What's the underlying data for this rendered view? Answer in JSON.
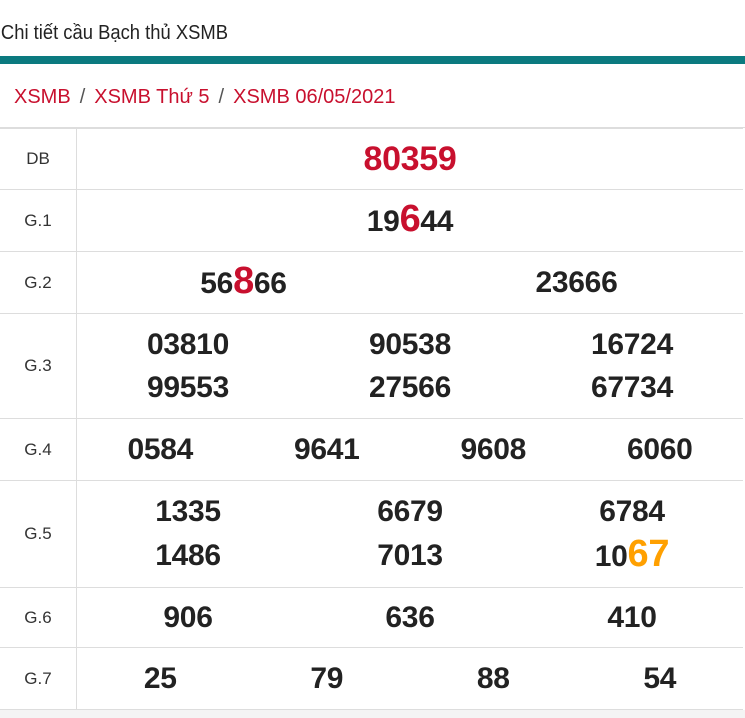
{
  "header": {
    "title": "Chi tiết cầu Bạch thủ XSMB",
    "accent": "#0b7a7f"
  },
  "breadcrumb": [
    "XSMB",
    "XSMB Thứ 5",
    "XSMB 06/05/2021"
  ],
  "colors": {
    "red": "#c8102e",
    "orange": "#ffa000"
  },
  "results": [
    {
      "label": "DB",
      "cols": 1,
      "height": 61,
      "numbers": [
        {
          "pre": "80359",
          "hl": "",
          "post": "",
          "special": true
        }
      ]
    },
    {
      "label": "G.1",
      "cols": 1,
      "height": 62,
      "numbers": [
        {
          "pre": "19",
          "hl": "6",
          "post": "44",
          "hl_color": "red"
        }
      ]
    },
    {
      "label": "G.2",
      "cols": 2,
      "height": 62,
      "numbers": [
        {
          "pre": "56",
          "hl": "8",
          "post": "66",
          "hl_color": "red"
        },
        {
          "pre": "23666",
          "hl": "",
          "post": ""
        }
      ]
    },
    {
      "label": "G.3",
      "cols": 3,
      "height": 105,
      "numbers": [
        {
          "pre": "03810"
        },
        {
          "pre": "90538"
        },
        {
          "pre": "16724"
        },
        {
          "pre": "99553"
        },
        {
          "pre": "27566"
        },
        {
          "pre": "67734"
        }
      ]
    },
    {
      "label": "G.4",
      "cols": 4,
      "height": 62,
      "numbers": [
        {
          "pre": "0584"
        },
        {
          "pre": "9641"
        },
        {
          "pre": "9608"
        },
        {
          "pre": "6060"
        }
      ]
    },
    {
      "label": "G.5",
      "cols": 3,
      "height": 107,
      "numbers": [
        {
          "pre": "1335"
        },
        {
          "pre": "6679"
        },
        {
          "pre": "6784"
        },
        {
          "pre": "1486"
        },
        {
          "pre": "7013"
        },
        {
          "pre": "10",
          "hl": "67",
          "post": "",
          "hl_color": "orange"
        }
      ]
    },
    {
      "label": "G.6",
      "cols": 3,
      "height": 60,
      "numbers": [
        {
          "pre": "906"
        },
        {
          "pre": "636"
        },
        {
          "pre": "410"
        }
      ]
    },
    {
      "label": "G.7",
      "cols": 4,
      "height": 62,
      "numbers": [
        {
          "pre": "25"
        },
        {
          "pre": "79"
        },
        {
          "pre": "88"
        },
        {
          "pre": "54"
        }
      ]
    }
  ]
}
